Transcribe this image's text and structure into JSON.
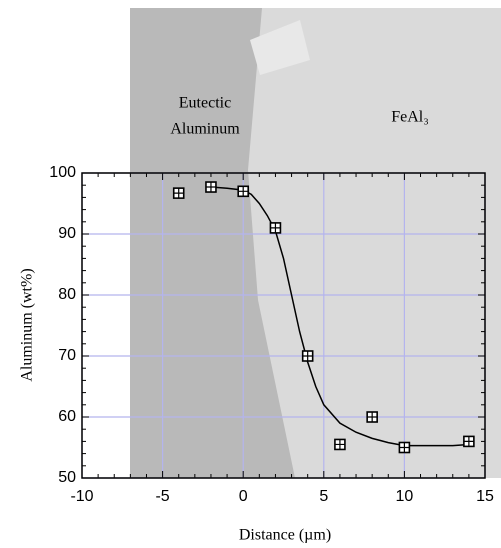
{
  "chart_data": {
    "type": "scatter",
    "xlabel": "Distance (µm)",
    "ylabel": "Aluminum (wt%)",
    "annotations": [
      "Eutectic",
      "Aluminum",
      "FeAl₃"
    ],
    "xlim": [
      -10,
      15
    ],
    "ylim": [
      50,
      100
    ],
    "xticks": [
      -10,
      -5,
      0,
      5,
      10,
      15
    ],
    "yticks": [
      50,
      60,
      70,
      80,
      90,
      100
    ],
    "grid": true,
    "grid_color": "#b4b4ee",
    "series": [
      {
        "style": "markers",
        "color": "#000000",
        "x": [
          -4,
          -2,
          0,
          2,
          4,
          6,
          8,
          10,
          14
        ],
        "values": [
          96.7,
          97.7,
          97,
          91,
          70,
          55.5,
          60,
          55,
          56
        ]
      },
      {
        "style": "line",
        "color": "#000000",
        "x": [
          -2,
          -1,
          0,
          0.5,
          1,
          1.5,
          2,
          2.5,
          3,
          3.5,
          4,
          4.5,
          5,
          6,
          7,
          8,
          9,
          10,
          11,
          12,
          13,
          14
        ],
        "values": [
          97.7,
          97.5,
          97.2,
          96.5,
          95,
          93,
          90.5,
          86,
          80,
          74,
          69,
          65,
          62,
          59,
          57.5,
          56.5,
          55.8,
          55.3,
          55.3,
          55.3,
          55.3,
          55.5
        ]
      }
    ]
  }
}
